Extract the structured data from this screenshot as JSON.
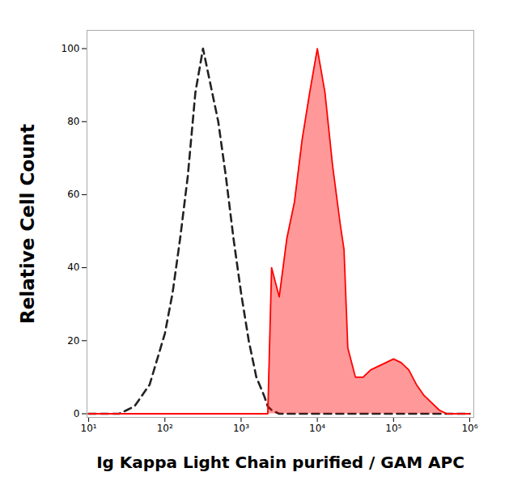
{
  "chart_data": {
    "type": "histogram",
    "xlabel": "Ig Kappa Light Chain purified / GAM APC",
    "ylabel": "Relative Cell Count",
    "log": "x",
    "x": [
      10,
      12.59,
      15.85,
      19.95,
      25.12,
      31.62,
      39.81,
      50.12,
      63.1,
      79.43,
      100,
      125.9,
      158.5,
      199.5,
      251.2,
      316.2,
      398.1,
      501.2,
      631,
      794.3,
      1000,
      1259,
      1585,
      1995,
      2239,
      2512,
      3162,
      3981,
      5012,
      6310,
      7943,
      10000,
      12589,
      15849,
      19953,
      22387,
      25119,
      31623,
      39811,
      50119,
      63096,
      79433,
      100000,
      125893,
      158489,
      199526,
      251189,
      316228,
      398107,
      501187,
      630957,
      794328,
      1000000
    ],
    "series": [
      {
        "type": "line",
        "line_style": "dashed",
        "color": "#222222",
        "values": [
          0,
          0,
          0,
          0,
          0,
          1,
          2,
          5,
          8,
          15,
          22,
          33,
          48,
          65,
          88,
          100,
          90,
          80,
          65,
          48,
          33,
          20,
          10,
          5,
          2,
          1,
          0,
          0,
          0,
          0,
          0,
          0,
          0,
          0,
          0,
          0,
          0,
          0,
          0,
          0,
          0,
          0,
          0,
          0,
          0,
          0,
          0,
          0,
          0,
          0,
          0,
          0,
          0
        ]
      },
      {
        "type": "area",
        "line_style": "solid",
        "color": "#ff0000",
        "values": [
          0,
          0,
          0,
          0,
          0,
          0,
          0,
          0,
          0,
          0,
          0,
          0,
          0,
          0,
          0,
          0,
          0,
          0,
          0,
          0,
          0,
          0,
          0,
          0,
          0,
          40,
          32,
          48,
          58,
          75,
          88,
          100,
          88,
          68,
          52,
          45,
          18,
          10,
          10,
          12,
          13,
          14,
          15,
          14,
          12,
          8,
          5,
          3,
          1,
          0,
          0,
          0,
          0
        ]
      }
    ],
    "xlim": [
      9.5,
      1130000
    ],
    "xticks": [
      {
        "value": 10,
        "label": "10¹"
      },
      {
        "value": 100,
        "label": "10²"
      },
      {
        "value": 1000,
        "label": "10³"
      },
      {
        "value": 10000,
        "label": "10⁴"
      },
      {
        "value": 100000,
        "label": "10⁵"
      },
      {
        "value": 1000000,
        "label": "10⁶"
      }
    ],
    "ylim": [
      -1,
      105
    ],
    "yticks": [
      0,
      20,
      40,
      60,
      80,
      100
    ],
    "grid": false
  }
}
